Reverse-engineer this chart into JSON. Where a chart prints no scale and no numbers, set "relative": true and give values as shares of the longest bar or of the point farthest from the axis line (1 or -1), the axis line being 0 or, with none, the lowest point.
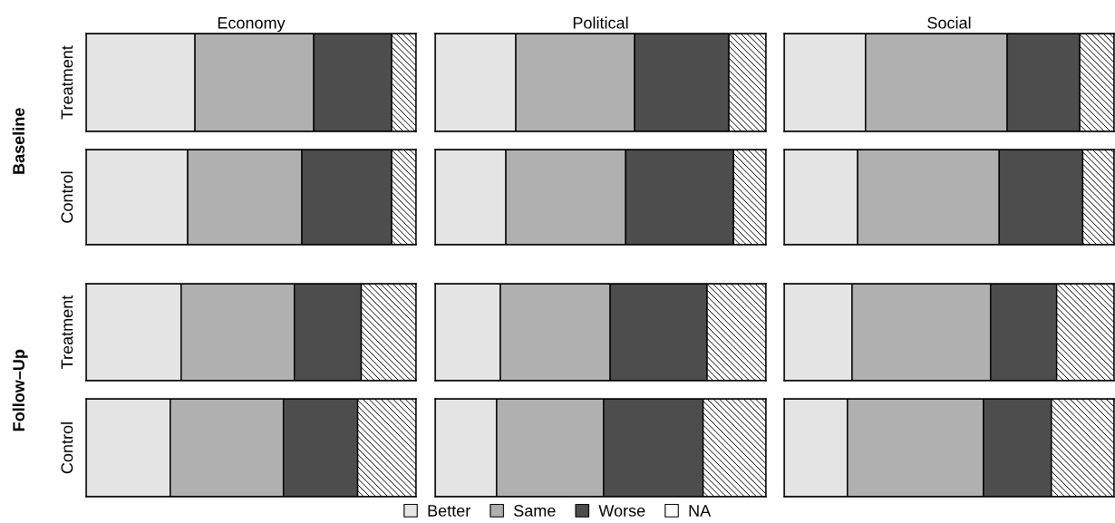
{
  "chart_data": [
    {
      "type": "bar",
      "orientation": "horizontal",
      "stacked": true,
      "relative": true,
      "title": "Economy",
      "ylabel": "Treatment",
      "annotations": [
        "Baseline"
      ],
      "categories": [
        null
      ],
      "legend": "bottom",
      "series": [
        {
          "name": "Better",
          "color": "#e5e5e5",
          "values": [
            0.33
          ]
        },
        {
          "name": "Same",
          "color": "#b0b0b0",
          "values": [
            0.36
          ]
        },
        {
          "name": "Worse",
          "color": "#4d4d4d",
          "values": [
            0.236
          ]
        },
        {
          "name": "NA",
          "color": "#ffffff",
          "values": [
            0.074
          ]
        }
      ]
    },
    {
      "type": "bar",
      "orientation": "horizontal",
      "stacked": true,
      "relative": true,
      "title": "Political",
      "categories": [
        null
      ],
      "series": [
        {
          "color": "#e5e5e5",
          "values": [
            0.244
          ]
        },
        {
          "color": "#b0b0b0",
          "values": [
            0.359
          ]
        },
        {
          "color": "#4d4d4d",
          "values": [
            0.285
          ]
        },
        {
          "color": "#ffffff",
          "values": [
            0.112
          ]
        }
      ]
    },
    {
      "type": "bar",
      "orientation": "horizontal",
      "stacked": true,
      "relative": true,
      "title": "Social",
      "categories": [
        null
      ],
      "series": [
        {
          "color": "#e5e5e5",
          "values": [
            0.247
          ]
        },
        {
          "color": "#b0b0b0",
          "values": [
            0.429
          ]
        },
        {
          "color": "#4d4d4d",
          "values": [
            0.22
          ]
        },
        {
          "color": "#ffffff",
          "values": [
            0.104
          ]
        }
      ]
    },
    {
      "type": "bar",
      "orientation": "horizontal",
      "stacked": true,
      "relative": true,
      "ylabel": "Control",
      "categories": [
        null
      ],
      "series": [
        {
          "color": "#e5e5e5",
          "values": [
            0.308
          ]
        },
        {
          "color": "#b0b0b0",
          "values": [
            0.346
          ]
        },
        {
          "color": "#4d4d4d",
          "values": [
            0.272
          ]
        },
        {
          "color": "#ffffff",
          "values": [
            0.074
          ]
        }
      ]
    },
    {
      "type": "bar",
      "orientation": "horizontal",
      "stacked": true,
      "relative": true,
      "categories": [
        null
      ],
      "series": [
        {
          "color": "#e5e5e5",
          "values": [
            0.214
          ]
        },
        {
          "color": "#b0b0b0",
          "values": [
            0.362
          ]
        },
        {
          "color": "#4d4d4d",
          "values": [
            0.326
          ]
        },
        {
          "color": "#ffffff",
          "values": [
            0.098
          ]
        }
      ]
    },
    {
      "type": "bar",
      "orientation": "horizontal",
      "stacked": true,
      "relative": true,
      "categories": [
        null
      ],
      "series": [
        {
          "color": "#e5e5e5",
          "values": [
            0.223
          ]
        },
        {
          "color": "#b0b0b0",
          "values": [
            0.429
          ]
        },
        {
          "color": "#4d4d4d",
          "values": [
            0.253
          ]
        },
        {
          "color": "#ffffff",
          "values": [
            0.095
          ]
        }
      ]
    },
    {
      "type": "bar",
      "orientation": "horizontal",
      "stacked": true,
      "relative": true,
      "ylabel": "Treatment",
      "annotations": [
        "Follow–Up"
      ],
      "categories": [
        null
      ],
      "series": [
        {
          "color": "#e5e5e5",
          "values": [
            0.288
          ]
        },
        {
          "color": "#b0b0b0",
          "values": [
            0.343
          ]
        },
        {
          "color": "#4d4d4d",
          "values": [
            0.203
          ]
        },
        {
          "color": "#ffffff",
          "values": [
            0.166
          ]
        }
      ]
    },
    {
      "type": "bar",
      "orientation": "horizontal",
      "stacked": true,
      "relative": true,
      "categories": [
        null
      ],
      "series": [
        {
          "color": "#e5e5e5",
          "values": [
            0.197
          ]
        },
        {
          "color": "#b0b0b0",
          "values": [
            0.332
          ]
        },
        {
          "color": "#4d4d4d",
          "values": [
            0.293
          ]
        },
        {
          "color": "#ffffff",
          "values": [
            0.178
          ]
        }
      ]
    },
    {
      "type": "bar",
      "orientation": "horizontal",
      "stacked": true,
      "relative": true,
      "categories": [
        null
      ],
      "series": [
        {
          "color": "#e5e5e5",
          "values": [
            0.206
          ]
        },
        {
          "color": "#b0b0b0",
          "values": [
            0.42
          ]
        },
        {
          "color": "#4d4d4d",
          "values": [
            0.2
          ]
        },
        {
          "color": "#ffffff",
          "values": [
            0.174
          ]
        }
      ]
    },
    {
      "type": "bar",
      "orientation": "horizontal",
      "stacked": true,
      "relative": true,
      "ylabel": "Control",
      "categories": [
        null
      ],
      "series": [
        {
          "color": "#e5e5e5",
          "values": [
            0.255
          ]
        },
        {
          "color": "#b0b0b0",
          "values": [
            0.343
          ]
        },
        {
          "color": "#4d4d4d",
          "values": [
            0.225
          ]
        },
        {
          "color": "#ffffff",
          "values": [
            0.177
          ]
        }
      ]
    },
    {
      "type": "bar",
      "orientation": "horizontal",
      "stacked": true,
      "relative": true,
      "categories": [
        null
      ],
      "series": [
        {
          "color": "#e5e5e5",
          "values": [
            0.186
          ]
        },
        {
          "color": "#b0b0b0",
          "values": [
            0.323
          ]
        },
        {
          "color": "#4d4d4d",
          "values": [
            0.301
          ]
        },
        {
          "color": "#ffffff",
          "values": [
            0.19
          ]
        }
      ]
    },
    {
      "type": "bar",
      "orientation": "horizontal",
      "stacked": true,
      "relative": true,
      "categories": [
        null
      ],
      "series": [
        {
          "color": "#e5e5e5",
          "values": [
            0.192
          ]
        },
        {
          "color": "#b0b0b0",
          "values": [
            0.412
          ]
        },
        {
          "color": "#4d4d4d",
          "values": [
            0.206
          ]
        },
        {
          "color": "#ffffff",
          "values": [
            0.19
          ]
        }
      ]
    }
  ]
}
